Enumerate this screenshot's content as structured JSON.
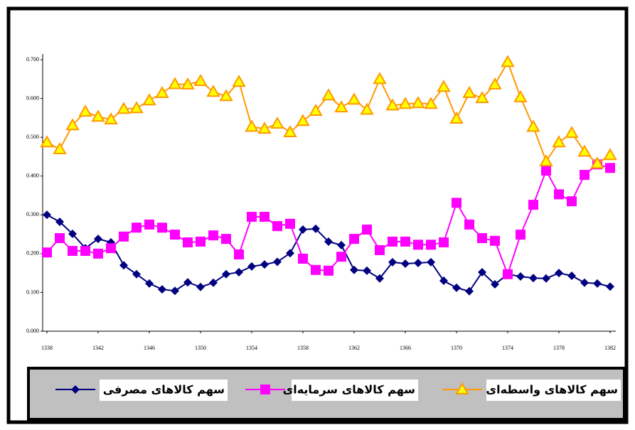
{
  "chart_data": {
    "type": "line",
    "x": [
      1338,
      1339,
      1340,
      1341,
      1342,
      1343,
      1344,
      1345,
      1346,
      1347,
      1348,
      1349,
      1350,
      1351,
      1352,
      1353,
      1354,
      1355,
      1356,
      1357,
      1358,
      1359,
      1360,
      1361,
      1362,
      1363,
      1364,
      1365,
      1366,
      1367,
      1368,
      1369,
      1370,
      1371,
      1372,
      1373,
      1374,
      1375,
      1376,
      1377,
      1378,
      1379,
      1380,
      1381,
      1382
    ],
    "xlim": [
      1338,
      1382
    ],
    "xticks": [
      1338,
      1342,
      1346,
      1350,
      1354,
      1358,
      1362,
      1366,
      1370,
      1374,
      1378,
      1382
    ],
    "ylim": [
      0,
      0.7
    ],
    "yticks": [
      {
        "value": 0,
        "label": "0.000"
      },
      {
        "value": 0.1,
        "label": "0.100"
      },
      {
        "value": 0.2,
        "label": "0.200"
      },
      {
        "value": 0.3,
        "label": "0.300"
      },
      {
        "value": 0.4,
        "label": "0.400"
      },
      {
        "value": 0.5,
        "label": "0.500"
      },
      {
        "value": 0.6,
        "label": "0.600"
      },
      {
        "value": 0.7,
        "label": "0.700"
      }
    ],
    "series": [
      {
        "name": "سهم کالاهای مصرفی",
        "color": "#000080",
        "marker": "diamond",
        "values": [
          0.3,
          0.282,
          0.251,
          0.214,
          0.238,
          0.229,
          0.17,
          0.147,
          0.123,
          0.108,
          0.104,
          0.126,
          0.114,
          0.125,
          0.147,
          0.152,
          0.167,
          0.172,
          0.179,
          0.201,
          0.262,
          0.264,
          0.231,
          0.222,
          0.158,
          0.156,
          0.136,
          0.178,
          0.174,
          0.176,
          0.178,
          0.13,
          0.112,
          0.103,
          0.152,
          0.121,
          0.147,
          0.141,
          0.137,
          0.136,
          0.15,
          0.143,
          0.125,
          0.123,
          0.115
        ]
      },
      {
        "name": "سهم کالاهای سرمایه‌ای",
        "color": "#ff00ff",
        "marker": "square",
        "values": [
          0.203,
          0.24,
          0.207,
          0.207,
          0.2,
          0.214,
          0.244,
          0.267,
          0.275,
          0.267,
          0.249,
          0.229,
          0.231,
          0.247,
          0.238,
          0.198,
          0.295,
          0.295,
          0.271,
          0.277,
          0.187,
          0.158,
          0.156,
          0.192,
          0.238,
          0.262,
          0.209,
          0.231,
          0.231,
          0.223,
          0.223,
          0.229,
          0.331,
          0.275,
          0.24,
          0.233,
          0.147,
          0.249,
          0.326,
          0.414,
          0.353,
          0.335,
          0.403,
          0.43,
          0.421
        ]
      },
      {
        "name": "سهم کالاهای واسطه‌ای",
        "color": "#ff9900",
        "marker": "triangle",
        "values": [
          0.487,
          0.469,
          0.531,
          0.566,
          0.553,
          0.546,
          0.573,
          0.575,
          0.595,
          0.614,
          0.637,
          0.636,
          0.645,
          0.617,
          0.606,
          0.643,
          0.527,
          0.522,
          0.535,
          0.513,
          0.542,
          0.568,
          0.608,
          0.577,
          0.597,
          0.571,
          0.65,
          0.582,
          0.586,
          0.588,
          0.586,
          0.63,
          0.548,
          0.614,
          0.601,
          0.636,
          0.694,
          0.603,
          0.527,
          0.438,
          0.487,
          0.511,
          0.463,
          0.432,
          0.454
        ]
      }
    ],
    "grid": false
  }
}
